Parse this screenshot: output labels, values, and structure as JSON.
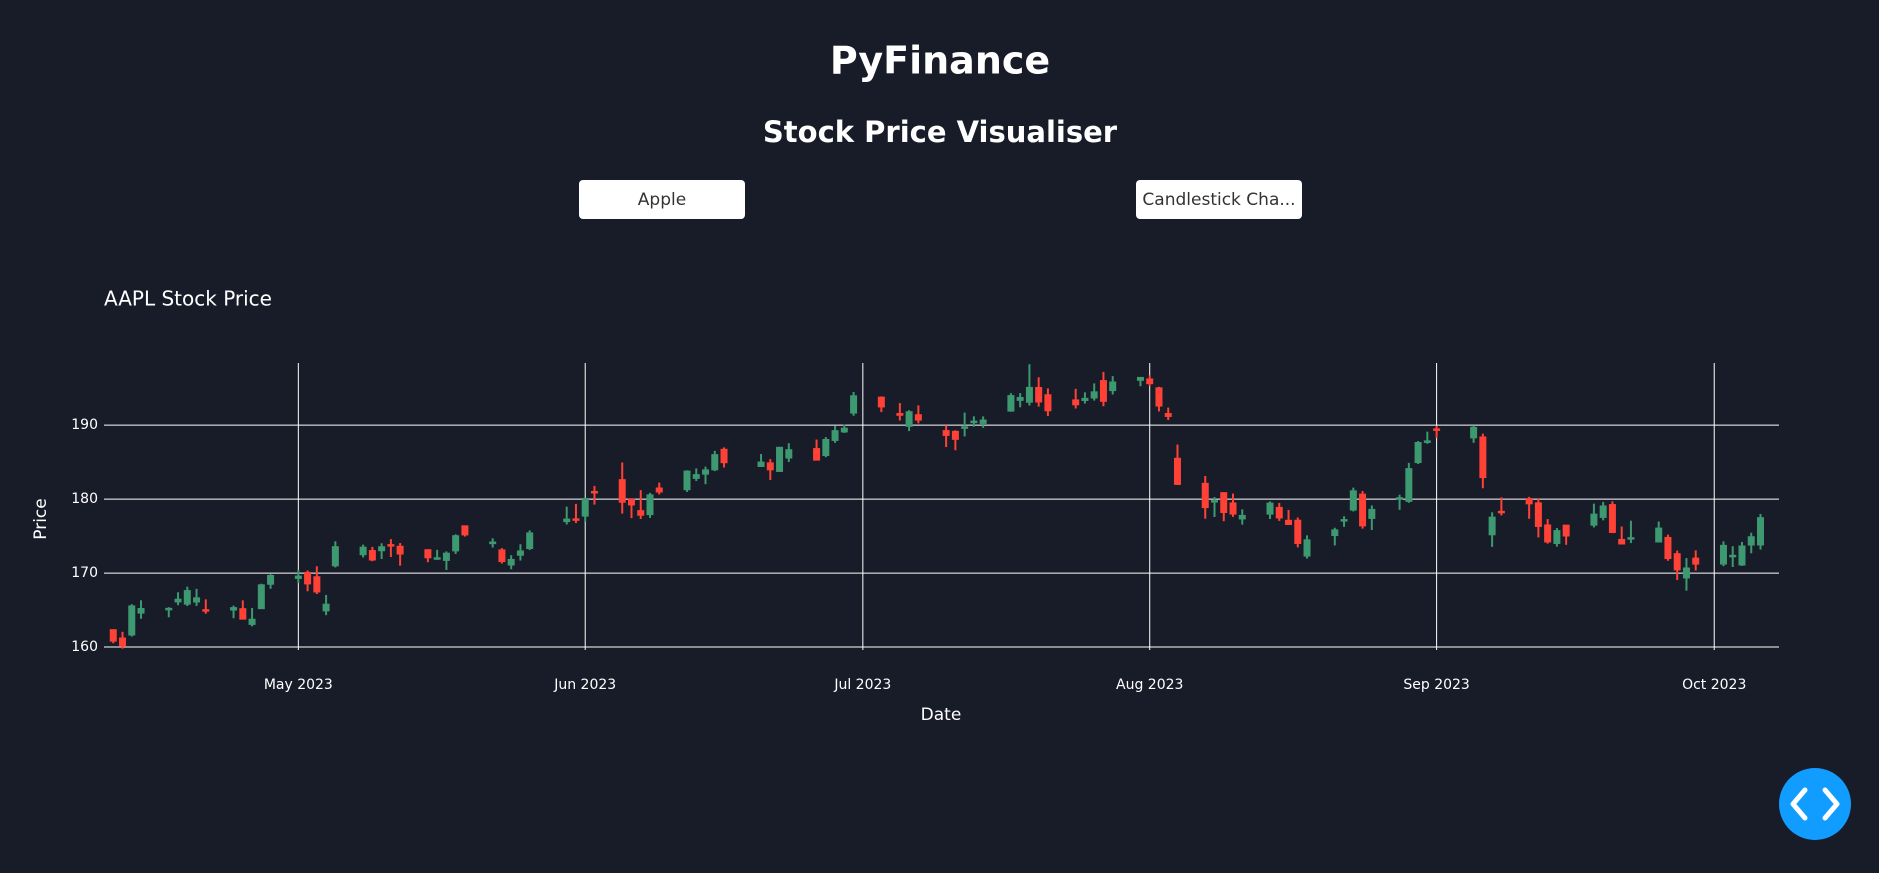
{
  "header": {
    "title": "PyFinance",
    "subtitle": "Stock Price Visualiser"
  },
  "controls": {
    "stock_dropdown": "Apple",
    "chart_type_dropdown": "Candlestick Cha..."
  },
  "chart_data": {
    "type": "candlestick",
    "title": "AAPL Stock Price",
    "x_label": "Date",
    "y_label": "Price",
    "increasing_color": "#3d9970",
    "decreasing_color": "#ff4136",
    "grid": true,
    "xlim": [
      "2023-04-10",
      "2023-10-08"
    ],
    "xticks": [
      {
        "value": "2023-05-01",
        "label": "May 2023"
      },
      {
        "value": "2023-06-01",
        "label": "Jun 2023"
      },
      {
        "value": "2023-07-01",
        "label": "Jul 2023"
      },
      {
        "value": "2023-08-01",
        "label": "Aug 2023"
      },
      {
        "value": "2023-09-01",
        "label": "Sep 2023"
      },
      {
        "value": "2023-10-01",
        "label": "Oct 2023"
      }
    ],
    "ylim": [
      159.6,
      198.4
    ],
    "yticks": [
      160,
      170,
      180,
      190
    ],
    "x": [
      "2023-04-11",
      "2023-04-12",
      "2023-04-13",
      "2023-04-14",
      "2023-04-17",
      "2023-04-18",
      "2023-04-19",
      "2023-04-20",
      "2023-04-21",
      "2023-04-24",
      "2023-04-25",
      "2023-04-26",
      "2023-04-27",
      "2023-04-28",
      "2023-05-01",
      "2023-05-02",
      "2023-05-03",
      "2023-05-04",
      "2023-05-05",
      "2023-05-08",
      "2023-05-09",
      "2023-05-10",
      "2023-05-11",
      "2023-05-12",
      "2023-05-15",
      "2023-05-16",
      "2023-05-17",
      "2023-05-18",
      "2023-05-19",
      "2023-05-22",
      "2023-05-23",
      "2023-05-24",
      "2023-05-25",
      "2023-05-26",
      "2023-05-30",
      "2023-05-31",
      "2023-06-01",
      "2023-06-02",
      "2023-06-05",
      "2023-06-06",
      "2023-06-07",
      "2023-06-08",
      "2023-06-09",
      "2023-06-12",
      "2023-06-13",
      "2023-06-14",
      "2023-06-15",
      "2023-06-16",
      "2023-06-20",
      "2023-06-21",
      "2023-06-22",
      "2023-06-23",
      "2023-06-26",
      "2023-06-27",
      "2023-06-28",
      "2023-06-29",
      "2023-06-30",
      "2023-07-03",
      "2023-07-05",
      "2023-07-06",
      "2023-07-07",
      "2023-07-10",
      "2023-07-11",
      "2023-07-12",
      "2023-07-13",
      "2023-07-14",
      "2023-07-17",
      "2023-07-18",
      "2023-07-19",
      "2023-07-20",
      "2023-07-21",
      "2023-07-24",
      "2023-07-25",
      "2023-07-26",
      "2023-07-27",
      "2023-07-28",
      "2023-07-31",
      "2023-08-01",
      "2023-08-02",
      "2023-08-03",
      "2023-08-04",
      "2023-08-07",
      "2023-08-08",
      "2023-08-09",
      "2023-08-10",
      "2023-08-11",
      "2023-08-14",
      "2023-08-15",
      "2023-08-16",
      "2023-08-17",
      "2023-08-18",
      "2023-08-21",
      "2023-08-22",
      "2023-08-23",
      "2023-08-24",
      "2023-08-25",
      "2023-08-28",
      "2023-08-29",
      "2023-08-30",
      "2023-08-31",
      "2023-09-01",
      "2023-09-05",
      "2023-09-06",
      "2023-09-07",
      "2023-09-08",
      "2023-09-11",
      "2023-09-12",
      "2023-09-13",
      "2023-09-14",
      "2023-09-15",
      "2023-09-18",
      "2023-09-19",
      "2023-09-20",
      "2023-09-21",
      "2023-09-22",
      "2023-09-25",
      "2023-09-26",
      "2023-09-27",
      "2023-09-28",
      "2023-09-29",
      "2023-10-02",
      "2023-10-03",
      "2023-10-04",
      "2023-10-05",
      "2023-10-06"
    ],
    "open": [
      162.35,
      161.22,
      161.63,
      164.59,
      165.09,
      166.1,
      165.8,
      166.09,
      165.05,
      165.0,
      165.19,
      163.06,
      165.19,
      168.49,
      169.28,
      170.09,
      169.5,
      164.89,
      170.98,
      172.48,
      173.05,
      173.02,
      173.85,
      173.62,
      173.16,
      171.99,
      171.71,
      173.0,
      176.39,
      173.98,
      173.13,
      171.09,
      172.41,
      173.32,
      176.96,
      177.33,
      177.7,
      181.03,
      182.63,
      179.97,
      178.44,
      177.9,
      181.5,
      181.27,
      182.8,
      183.37,
      183.96,
      186.73,
      184.41,
      184.9,
      183.74,
      185.55,
      186.83,
      185.89,
      187.93,
      189.08,
      191.63,
      193.78,
      191.57,
      189.84,
      191.41,
      189.26,
      189.16,
      189.68,
      190.5,
      190.23,
      191.9,
      193.35,
      193.1,
      195.09,
      194.1,
      193.41,
      193.33,
      193.67,
      196.02,
      194.67,
      196.06,
      196.24,
      195.04,
      191.57,
      185.52,
      182.13,
      179.69,
      180.87,
      179.48,
      177.32,
      177.97,
      178.88,
      177.13,
      177.14,
      172.3,
      175.07,
      177.06,
      178.52,
      180.67,
      177.38,
      180.09,
      179.7,
      184.94,
      187.84,
      189.49,
      188.28,
      188.4,
      175.18,
      178.35,
      180.07,
      179.49,
      176.51,
      174.0,
      176.48,
      176.48,
      177.52,
      179.26,
      174.55,
      174.67,
      174.2,
      174.82,
      172.62,
      169.34,
      172.02,
      171.22,
      172.26,
      171.09,
      173.79,
      173.8
    ],
    "high": [
      162.36,
      162.06,
      165.8,
      166.32,
      165.39,
      167.41,
      168.16,
      167.87,
      166.45,
      165.6,
      166.31,
      165.28,
      168.56,
      169.85,
      170.45,
      170.35,
      170.92,
      167.04,
      174.3,
      173.85,
      173.54,
      174.03,
      174.59,
      174.06,
      173.21,
      173.14,
      172.93,
      175.24,
      176.39,
      174.71,
      173.38,
      172.42,
      173.9,
      175.77,
      178.99,
      179.35,
      180.12,
      181.78,
      184.95,
      180.12,
      181.21,
      180.84,
      182.23,
      183.89,
      184.15,
      184.39,
      186.52,
      186.99,
      186.1,
      185.41,
      187.05,
      187.56,
      188.05,
      188.39,
      189.9,
      190.07,
      194.48,
      193.88,
      192.98,
      192.02,
      192.67,
      189.99,
      189.3,
      191.7,
      191.19,
      191.18,
      194.32,
      194.33,
      198.23,
      196.47,
      194.97,
      194.91,
      194.44,
      195.64,
      197.2,
      196.63,
      196.49,
      196.73,
      195.18,
      192.37,
      187.38,
      183.13,
      180.27,
      180.93,
      180.75,
      178.62,
      179.69,
      179.48,
      178.54,
      177.51,
      175.1,
      176.13,
      177.68,
      181.55,
      181.1,
      179.15,
      180.59,
      184.9,
      187.85,
      189.12,
      189.92,
      189.98,
      188.85,
      178.21,
      180.24,
      180.3,
      180.13,
      177.3,
      176.1,
      176.5,
      179.38,
      179.63,
      179.7,
      176.3,
      177.08,
      176.97,
      175.2,
      173.04,
      172.03,
      173.07,
      174.3,
      173.63,
      174.21,
      175.45,
      177.99
    ],
    "low": [
      160.51,
      159.78,
      161.42,
      163.82,
      164.03,
      165.65,
      165.54,
      165.56,
      164.49,
      163.89,
      163.73,
      162.8,
      165.19,
      167.88,
      168.64,
      167.54,
      167.16,
      164.31,
      170.76,
      172.11,
      171.6,
      171.9,
      172.17,
      171.0,
      171.47,
      171.8,
      170.42,
      172.58,
      174.94,
      173.45,
      171.28,
      170.52,
      171.69,
      173.11,
      176.57,
      176.76,
      176.93,
      179.26,
      178.04,
      177.43,
      177.32,
      177.46,
      180.63,
      180.97,
      182.44,
      182.02,
      183.78,
      184.27,
      184.41,
      182.59,
      183.67,
      185.01,
      185.23,
      185.67,
      187.6,
      188.94,
      191.26,
      191.76,
      190.62,
      189.2,
      190.24,
      187.04,
      186.6,
      188.47,
      189.78,
      189.63,
      191.81,
      192.42,
      192.65,
      192.5,
      191.23,
      192.25,
      192.92,
      193.32,
      192.55,
      194.14,
      195.26,
      195.28,
      191.85,
      190.69,
      181.92,
      177.35,
      177.58,
      177.01,
      177.6,
      176.55,
      177.31,
      177.05,
      176.5,
      173.48,
      171.96,
      173.74,
      176.25,
      178.33,
      176.01,
      175.82,
      178.55,
      179.5,
      184.74,
      187.48,
      188.28,
      187.61,
      181.47,
      173.54,
      177.79,
      177.34,
      174.82,
      173.98,
      173.58,
      173.82,
      176.17,
      177.13,
      175.4,
      173.86,
      174.05,
      174.15,
      171.66,
      169.05,
      167.62,
      170.34,
      170.93,
      170.82,
      170.97,
      172.68,
      173.18
    ],
    "close": [
      160.8,
      160.1,
      165.56,
      165.21,
      165.23,
      166.47,
      167.63,
      166.65,
      165.02,
      165.33,
      163.77,
      163.76,
      168.41,
      169.68,
      169.59,
      168.54,
      167.45,
      165.79,
      173.57,
      173.5,
      171.77,
      173.56,
      173.75,
      172.57,
      172.07,
      172.07,
      172.69,
      175.05,
      175.16,
      174.2,
      171.56,
      171.84,
      172.99,
      175.43,
      177.3,
      177.25,
      180.09,
      180.95,
      179.58,
      179.21,
      177.82,
      180.57,
      180.96,
      183.79,
      183.31,
      183.95,
      186.01,
      184.92,
      185.01,
      183.96,
      187.0,
      186.68,
      185.27,
      188.06,
      189.25,
      189.59,
      193.97,
      192.46,
      191.33,
      191.81,
      190.68,
      188.61,
      188.08,
      189.77,
      190.54,
      190.69,
      193.99,
      193.73,
      195.1,
      193.13,
      191.94,
      192.75,
      193.62,
      194.5,
      193.22,
      195.83,
      196.45,
      195.61,
      192.58,
      191.17,
      181.99,
      178.85,
      179.8,
      178.19,
      177.97,
      177.79,
      179.46,
      177.45,
      176.57,
      174.0,
      174.49,
      175.84,
      177.23,
      181.12,
      176.38,
      178.61,
      180.19,
      184.12,
      187.65,
      187.87,
      189.46,
      189.7,
      182.91,
      177.56,
      178.18,
      179.36,
      176.3,
      174.21,
      175.74,
      175.01,
      177.97,
      179.07,
      175.49,
      173.93,
      174.79,
      176.08,
      171.96,
      170.43,
      170.69,
      171.21,
      173.75,
      172.4,
      173.66,
      174.91,
      177.49
    ]
  }
}
